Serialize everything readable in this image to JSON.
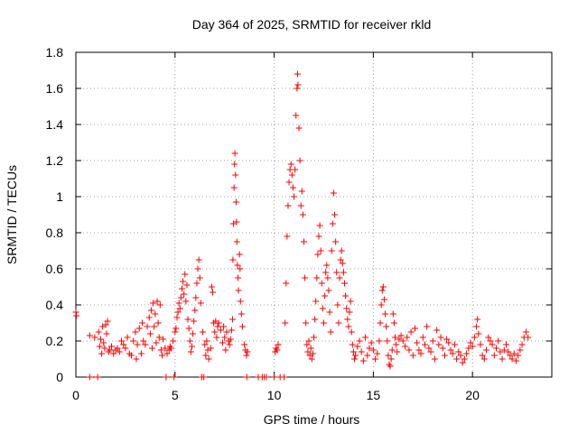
{
  "chart_data": {
    "type": "scatter",
    "title": "Day 364 of 2025, SRMTID for receiver rkld",
    "xlabel": "GPS time / hours",
    "ylabel": "SRMTID / TECUs",
    "xlim": [
      0,
      24
    ],
    "ylim": [
      0,
      1.8
    ],
    "xticks": [
      0,
      5,
      10,
      15,
      20
    ],
    "yticks": [
      0,
      0.2,
      0.4,
      0.6,
      0.8,
      1,
      1.2,
      1.4,
      1.6,
      1.8
    ],
    "xtick_labels": [
      "0",
      "5",
      "10",
      "15",
      "20"
    ],
    "ytick_labels": [
      "0",
      "0.2",
      "0.4",
      "0.6",
      "0.8",
      "1",
      "1.2",
      "1.4",
      "1.6",
      "1.8"
    ],
    "grid": true,
    "marker": "+",
    "marker_color": "#ff0000",
    "series": [
      {
        "name": "SRMTID",
        "points": [
          [
            0.0,
            0.36
          ],
          [
            0.03,
            0.34
          ],
          [
            0.7,
            0.23
          ],
          [
            0.7,
            0.0
          ],
          [
            0.95,
            0.22
          ],
          [
            1.1,
            0.0
          ],
          [
            1.15,
            0.25
          ],
          [
            1.2,
            0.17
          ],
          [
            1.25,
            0.21
          ],
          [
            1.3,
            0.13
          ],
          [
            1.35,
            0.28
          ],
          [
            1.4,
            0.19
          ],
          [
            1.45,
            0.16
          ],
          [
            1.5,
            0.29
          ],
          [
            1.55,
            0.24
          ],
          [
            1.6,
            0.31
          ],
          [
            1.65,
            0.14
          ],
          [
            1.7,
            0.15
          ],
          [
            1.8,
            0.17
          ],
          [
            1.9,
            0.13
          ],
          [
            2.0,
            0.15
          ],
          [
            2.1,
            0.16
          ],
          [
            2.2,
            0.14
          ],
          [
            2.3,
            0.2
          ],
          [
            2.4,
            0.18
          ],
          [
            2.5,
            0.16
          ],
          [
            2.6,
            0.22
          ],
          [
            2.7,
            0.13
          ],
          [
            2.8,
            0.12
          ],
          [
            2.9,
            0.2
          ],
          [
            3.0,
            0.25
          ],
          [
            3.05,
            0.1
          ],
          [
            3.1,
            0.18
          ],
          [
            3.2,
            0.27
          ],
          [
            3.3,
            0.13
          ],
          [
            3.35,
            0.3
          ],
          [
            3.4,
            0.2
          ],
          [
            3.5,
            0.18
          ],
          [
            3.6,
            0.28
          ],
          [
            3.7,
            0.33
          ],
          [
            3.75,
            0.24
          ],
          [
            3.8,
            0.37
          ],
          [
            3.85,
            0.16
          ],
          [
            3.9,
            0.41
          ],
          [
            3.95,
            0.28
          ],
          [
            4.0,
            0.35
          ],
          [
            4.05,
            0.19
          ],
          [
            4.1,
            0.42
          ],
          [
            4.15,
            0.3
          ],
          [
            4.2,
            0.22
          ],
          [
            4.25,
            0.4
          ],
          [
            4.3,
            0.15
          ],
          [
            4.35,
            0.12
          ],
          [
            4.4,
            0.21
          ],
          [
            4.5,
            0.16
          ],
          [
            4.55,
            0.0
          ],
          [
            4.6,
            0.13
          ],
          [
            4.7,
            0.15
          ],
          [
            4.75,
            0.17
          ],
          [
            4.8,
            0.16
          ],
          [
            4.9,
            0.2
          ],
          [
            4.95,
            0.0
          ],
          [
            5.0,
            0.25
          ],
          [
            5.05,
            0.27
          ],
          [
            5.1,
            0.33
          ],
          [
            5.15,
            0.36
          ],
          [
            5.2,
            0.41
          ],
          [
            5.25,
            0.38
          ],
          [
            5.3,
            0.44
          ],
          [
            5.35,
            0.49
          ],
          [
            5.4,
            0.53
          ],
          [
            5.45,
            0.46
          ],
          [
            5.5,
            0.57
          ],
          [
            5.55,
            0.42
          ],
          [
            5.6,
            0.51
          ],
          [
            5.65,
            0.32
          ],
          [
            5.7,
            0.27
          ],
          [
            5.75,
            0.2
          ],
          [
            5.8,
            0.14
          ],
          [
            5.85,
            0.17
          ],
          [
            5.9,
            0.24
          ],
          [
            5.95,
            0.31
          ],
          [
            6.0,
            0.37
          ],
          [
            6.05,
            0.44
          ],
          [
            6.1,
            0.52
          ],
          [
            6.15,
            0.6
          ],
          [
            6.2,
            0.65
          ],
          [
            6.25,
            0.55
          ],
          [
            6.3,
            0.41
          ],
          [
            6.35,
            0.0
          ],
          [
            6.4,
            0.25
          ],
          [
            6.45,
            0.0
          ],
          [
            6.5,
            0.18
          ],
          [
            6.55,
            0.12
          ],
          [
            6.6,
            0.2
          ],
          [
            6.65,
            0.15
          ],
          [
            6.7,
            0.1
          ],
          [
            6.8,
            0.16
          ],
          [
            6.85,
            0.5
          ],
          [
            6.9,
            0.47
          ],
          [
            6.95,
            0.3
          ],
          [
            7.0,
            0.25
          ],
          [
            7.05,
            0.31
          ],
          [
            7.1,
            0.22
          ],
          [
            7.15,
            0.28
          ],
          [
            7.2,
            0.3
          ],
          [
            7.3,
            0.26
          ],
          [
            7.4,
            0.19
          ],
          [
            7.45,
            0.28
          ],
          [
            7.5,
            0.22
          ],
          [
            7.55,
            0.15
          ],
          [
            7.6,
            0.25
          ],
          [
            7.7,
            0.2
          ],
          [
            7.75,
            0.18
          ],
          [
            7.8,
            0.21
          ],
          [
            7.85,
            0.26
          ],
          [
            7.9,
            0.32
          ],
          [
            7.92,
            0.65
          ],
          [
            7.95,
            0.85
          ],
          [
            7.98,
            1.05
          ],
          [
            8.0,
            1.18
          ],
          [
            8.02,
            1.24
          ],
          [
            8.05,
            1.12
          ],
          [
            8.08,
            0.97
          ],
          [
            8.1,
            0.86
          ],
          [
            8.12,
            0.75
          ],
          [
            8.15,
            0.62
          ],
          [
            8.18,
            0.55
          ],
          [
            8.2,
            0.48
          ],
          [
            8.25,
            0.68
          ],
          [
            8.28,
            0.6
          ],
          [
            8.3,
            0.42
          ],
          [
            8.35,
            0.35
          ],
          [
            8.4,
            0.28
          ],
          [
            8.5,
            0.18
          ],
          [
            8.55,
            0.15
          ],
          [
            8.6,
            0.12
          ],
          [
            8.62,
            0.0
          ],
          [
            8.65,
            0.14
          ],
          [
            9.2,
            0.0
          ],
          [
            9.4,
            0.0
          ],
          [
            9.5,
            0.0
          ],
          [
            9.6,
            0.0
          ],
          [
            10.0,
            0.0
          ],
          [
            10.05,
            0.14
          ],
          [
            10.1,
            0.16
          ],
          [
            10.15,
            0.15
          ],
          [
            10.2,
            0.18
          ],
          [
            10.3,
            0.0
          ],
          [
            10.5,
            0.0
          ],
          [
            10.55,
            0.3
          ],
          [
            10.6,
            0.52
          ],
          [
            10.65,
            0.78
          ],
          [
            10.7,
            0.95
          ],
          [
            10.75,
            1.08
          ],
          [
            10.8,
            1.15
          ],
          [
            10.85,
            1.18
          ],
          [
            10.9,
            1.12
          ],
          [
            10.95,
            1.05
          ],
          [
            11.0,
            1.0
          ],
          [
            11.05,
            1.15
          ],
          [
            11.1,
            1.45
          ],
          [
            11.15,
            1.6
          ],
          [
            11.18,
            1.68
          ],
          [
            11.2,
            1.62
          ],
          [
            11.25,
            1.38
          ],
          [
            11.3,
            1.2
          ],
          [
            11.35,
            0.95
          ],
          [
            11.4,
            1.03
          ],
          [
            11.45,
            0.9
          ],
          [
            11.5,
            0.75
          ],
          [
            11.55,
            0.55
          ],
          [
            11.6,
            0.3
          ],
          [
            11.65,
            0.18
          ],
          [
            11.7,
            0.14
          ],
          [
            11.75,
            0.2
          ],
          [
            11.8,
            0.12
          ],
          [
            11.85,
            0.16
          ],
          [
            11.9,
            0.1
          ],
          [
            11.95,
            0.13
          ],
          [
            12.0,
            0.22
          ],
          [
            12.05,
            0.32
          ],
          [
            12.1,
            0.42
          ],
          [
            12.15,
            0.55
          ],
          [
            12.2,
            0.68
          ],
          [
            12.25,
            0.78
          ],
          [
            12.3,
            0.84
          ],
          [
            12.35,
            0.7
          ],
          [
            12.4,
            0.52
          ],
          [
            12.45,
            0.38
          ],
          [
            12.5,
            0.3
          ],
          [
            12.55,
            0.45
          ],
          [
            12.6,
            0.58
          ],
          [
            12.65,
            0.62
          ],
          [
            12.7,
            0.55
          ],
          [
            12.75,
            0.48
          ],
          [
            12.8,
            0.36
          ],
          [
            12.85,
            0.25
          ],
          [
            12.9,
            0.7
          ],
          [
            12.95,
            0.85
          ],
          [
            13.0,
            1.02
          ],
          [
            13.05,
            0.9
          ],
          [
            13.1,
            0.75
          ],
          [
            13.15,
            0.58
          ],
          [
            13.2,
            0.4
          ],
          [
            13.25,
            0.3
          ],
          [
            13.3,
            0.55
          ],
          [
            13.35,
            0.65
          ],
          [
            13.4,
            0.7
          ],
          [
            13.45,
            0.63
          ],
          [
            13.5,
            0.58
          ],
          [
            13.55,
            0.52
          ],
          [
            13.6,
            0.45
          ],
          [
            13.65,
            0.38
          ],
          [
            13.7,
            0.32
          ],
          [
            13.75,
            0.28
          ],
          [
            13.8,
            0.36
          ],
          [
            13.85,
            0.42
          ],
          [
            13.9,
            0.25
          ],
          [
            13.95,
            0.18
          ],
          [
            14.0,
            0.14
          ],
          [
            14.05,
            0.1
          ],
          [
            14.1,
            0.12
          ],
          [
            14.2,
            0.17
          ],
          [
            14.3,
            0.2
          ],
          [
            14.4,
            0.14
          ],
          [
            14.5,
            0.09
          ],
          [
            14.6,
            0.22
          ],
          [
            14.7,
            0.12
          ],
          [
            14.8,
            0.16
          ],
          [
            14.9,
            0.19
          ],
          [
            15.0,
            0.15
          ],
          [
            15.1,
            0.1
          ],
          [
            15.2,
            0.13
          ],
          [
            15.3,
            0.2
          ],
          [
            15.35,
            0.3
          ],
          [
            15.4,
            0.4
          ],
          [
            15.45,
            0.48
          ],
          [
            15.5,
            0.5
          ],
          [
            15.55,
            0.43
          ],
          [
            15.6,
            0.35
          ],
          [
            15.65,
            0.28
          ],
          [
            15.7,
            0.2
          ],
          [
            15.75,
            0.12
          ],
          [
            15.8,
            0.07
          ],
          [
            15.85,
            0.06
          ],
          [
            15.9,
            0.1
          ],
          [
            15.95,
            0.15
          ],
          [
            16.0,
            0.35
          ],
          [
            16.05,
            0.3
          ],
          [
            16.1,
            0.22
          ],
          [
            16.15,
            0.18
          ],
          [
            16.2,
            0.14
          ],
          [
            16.3,
            0.21
          ],
          [
            16.4,
            0.23
          ],
          [
            16.5,
            0.2
          ],
          [
            16.6,
            0.17
          ],
          [
            16.7,
            0.22
          ],
          [
            16.8,
            0.15
          ],
          [
            16.9,
            0.25
          ],
          [
            17.0,
            0.12
          ],
          [
            17.1,
            0.27
          ],
          [
            17.2,
            0.19
          ],
          [
            17.3,
            0.15
          ],
          [
            17.4,
            0.13
          ],
          [
            17.5,
            0.22
          ],
          [
            17.6,
            0.18
          ],
          [
            17.7,
            0.28
          ],
          [
            17.8,
            0.16
          ],
          [
            17.9,
            0.14
          ],
          [
            18.0,
            0.2
          ],
          [
            18.1,
            0.1
          ],
          [
            18.2,
            0.26
          ],
          [
            18.3,
            0.18
          ],
          [
            18.4,
            0.22
          ],
          [
            18.5,
            0.16
          ],
          [
            18.6,
            0.12
          ],
          [
            18.7,
            0.21
          ],
          [
            18.8,
            0.19
          ],
          [
            18.9,
            0.15
          ],
          [
            19.0,
            0.13
          ],
          [
            19.1,
            0.18
          ],
          [
            19.2,
            0.1
          ],
          [
            19.3,
            0.14
          ],
          [
            19.4,
            0.12
          ],
          [
            19.5,
            0.08
          ],
          [
            19.6,
            0.1
          ],
          [
            19.7,
            0.13
          ],
          [
            19.8,
            0.16
          ],
          [
            19.9,
            0.19
          ],
          [
            20.0,
            0.17
          ],
          [
            20.1,
            0.22
          ],
          [
            20.2,
            0.28
          ],
          [
            20.25,
            0.32
          ],
          [
            20.3,
            0.24
          ],
          [
            20.4,
            0.18
          ],
          [
            20.5,
            0.12
          ],
          [
            20.6,
            0.1
          ],
          [
            20.7,
            0.15
          ],
          [
            20.8,
            0.22
          ],
          [
            20.9,
            0.2
          ],
          [
            21.0,
            0.18
          ],
          [
            21.1,
            0.12
          ],
          [
            21.2,
            0.16
          ],
          [
            21.3,
            0.2
          ],
          [
            21.4,
            0.14
          ],
          [
            21.5,
            0.1
          ],
          [
            21.6,
            0.15
          ],
          [
            21.7,
            0.18
          ],
          [
            21.8,
            0.14
          ],
          [
            21.9,
            0.12
          ],
          [
            22.0,
            0.1
          ],
          [
            22.1,
            0.13
          ],
          [
            22.2,
            0.09
          ],
          [
            22.3,
            0.12
          ],
          [
            22.4,
            0.15
          ],
          [
            22.5,
            0.18
          ],
          [
            22.6,
            0.22
          ],
          [
            22.7,
            0.25
          ],
          [
            22.8,
            0.22
          ]
        ]
      }
    ]
  }
}
